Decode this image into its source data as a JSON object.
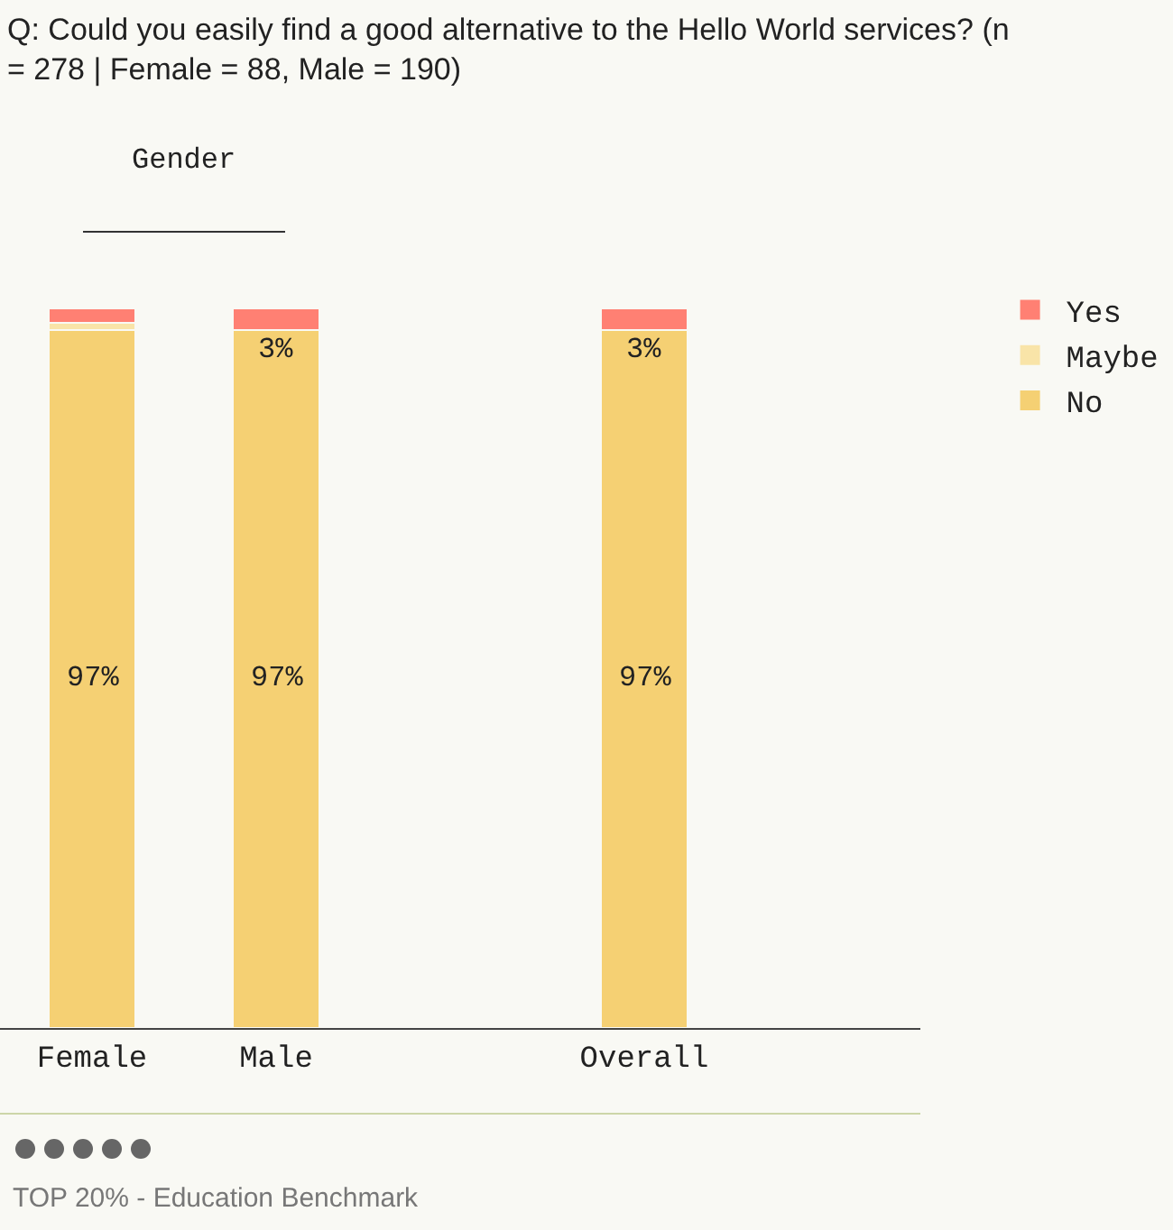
{
  "chart_data": {
    "type": "bar",
    "stacked": true,
    "title": "Q: Could you easily find a good alternative to the Hello World services? (n = 278 | Female = 88, Male = 190)",
    "categories": [
      "Female",
      "Male",
      null,
      "Overall"
    ],
    "series": [
      {
        "name": "No",
        "color": "#f5d073",
        "values": [
          97,
          97,
          null,
          97
        ],
        "value_labels": [
          "97%",
          "97%",
          null,
          "97%"
        ]
      },
      {
        "name": "Maybe",
        "color": "#f9e4a8",
        "values": [
          1,
          0,
          null,
          0
        ]
      },
      {
        "name": "Yes",
        "color": "#ff8073",
        "values": [
          2,
          3,
          null,
          3
        ],
        "value_labels": [
          null,
          "3%",
          null,
          "3%"
        ]
      }
    ],
    "annotations": [
      "Gender",
      "TOP 20% - Education Benchmark"
    ],
    "legend": "right",
    "grid": false
  }
}
